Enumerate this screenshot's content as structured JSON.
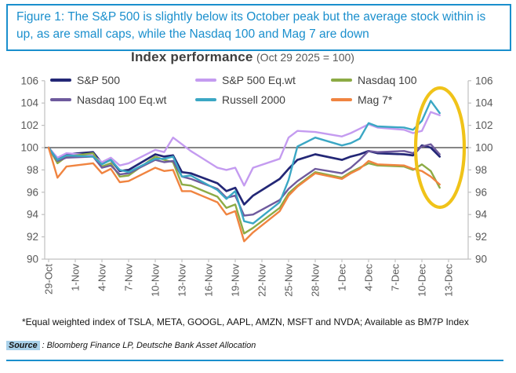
{
  "figure": {
    "title": "Figure 1: The S&P 500 is slightly below its October peak but the average stock within is up, as are small caps, while the Nasdaq 100 and Mag 7 are down",
    "footnote": "*Equal weighted index of TSLA, META, GOOGL, AAPL, AMZN, MSFT and NVDA; Available as BM7P Index",
    "source_label": "Source",
    "source_text": ": Bloomberg Finance LP, Deutsche Bank Asset Allocation",
    "accent_blue": "#1a8fcd"
  },
  "chart_data": {
    "type": "line",
    "title": "Index performance",
    "subtitle": "(Oct 29 2025 = 100)",
    "legend_position": "top",
    "grid": false,
    "baseline": 100,
    "ylim": [
      90,
      106
    ],
    "y_ticks": [
      90,
      92,
      94,
      96,
      98,
      100,
      102,
      104,
      106
    ],
    "right_axis_mirror": true,
    "x_ticks": [
      "29-Oct",
      "1-Nov",
      "4-Nov",
      "7-Nov",
      "10-Nov",
      "13-Nov",
      "16-Nov",
      "19-Nov",
      "22-Nov",
      "25-Nov",
      "28-Nov",
      "1-Dec",
      "4-Dec",
      "7-Dec",
      "10-Dec",
      "13-Dec"
    ],
    "x": [
      "29-Oct",
      "30-Oct",
      "31-Oct",
      "3-Nov",
      "4-Nov",
      "5-Nov",
      "6-Nov",
      "7-Nov",
      "10-Nov",
      "11-Nov",
      "12-Nov",
      "13-Nov",
      "14-Nov",
      "17-Nov",
      "18-Nov",
      "19-Nov",
      "20-Nov",
      "21-Nov",
      "24-Nov",
      "25-Nov",
      "26-Nov",
      "28-Nov",
      "1-Dec",
      "2-Dec",
      "3-Dec",
      "4-Dec",
      "5-Dec",
      "8-Dec",
      "9-Dec",
      "10-Dec",
      "11-Dec",
      "12-Dec"
    ],
    "series": [
      {
        "name": "S&P 500",
        "color": "#232776",
        "values": [
          100,
          99.0,
          99.4,
          99.6,
          98.6,
          98.9,
          97.9,
          98.0,
          99.4,
          99.2,
          99.3,
          97.8,
          97.7,
          96.8,
          96.1,
          96.4,
          94.9,
          95.7,
          97.2,
          98.1,
          98.9,
          99.4,
          98.9,
          99.2,
          99.4,
          99.7,
          99.5,
          99.4,
          99.3,
          100.2,
          100.0,
          99.2
        ]
      },
      {
        "name": "S&P 500 Eq.wt",
        "color": "#c49bf0",
        "values": [
          100,
          99.1,
          99.5,
          99.3,
          98.7,
          99.1,
          98.4,
          98.6,
          99.8,
          99.6,
          100.9,
          100.3,
          99.7,
          98.2,
          98.0,
          98.2,
          96.6,
          98.2,
          99.0,
          100.9,
          101.5,
          101.4,
          101.0,
          101.3,
          101.7,
          102.1,
          101.8,
          101.6,
          101.3,
          101.5,
          103.2,
          102.9
        ]
      },
      {
        "name": "Nasdaq 100",
        "color": "#8cab45",
        "values": [
          100,
          98.6,
          99.2,
          99.5,
          98.3,
          98.6,
          97.4,
          97.5,
          99.2,
          98.9,
          98.7,
          96.7,
          96.6,
          95.6,
          94.6,
          94.9,
          92.3,
          92.8,
          94.6,
          95.9,
          96.6,
          97.8,
          97.3,
          97.8,
          98.2,
          98.6,
          98.4,
          98.3,
          98.0,
          98.5,
          97.9,
          96.4
        ]
      },
      {
        "name": "Nasdaq 100 Eq.wt",
        "color": "#6e5a9d",
        "values": [
          100,
          98.8,
          99.1,
          99.2,
          98.2,
          98.4,
          97.6,
          97.7,
          98.9,
          98.7,
          98.8,
          97.4,
          97.2,
          96.3,
          95.5,
          95.7,
          93.9,
          94.0,
          95.3,
          96.3,
          97.0,
          98.1,
          97.7,
          98.2,
          98.9,
          99.7,
          99.6,
          99.7,
          99.5,
          100.1,
          100.3,
          99.4
        ]
      },
      {
        "name": "Russell 2000",
        "color": "#3ba7c4",
        "values": [
          100,
          98.9,
          99.3,
          99.2,
          98.5,
          98.9,
          98.0,
          97.8,
          99.0,
          99.0,
          99.2,
          97.4,
          97.5,
          96.2,
          95.4,
          96.1,
          93.4,
          93.2,
          95.1,
          97.1,
          100.1,
          100.9,
          100.2,
          100.4,
          100.8,
          102.2,
          101.9,
          101.8,
          101.6,
          102.4,
          104.2,
          103.1
        ]
      },
      {
        "name": "Mag 7*",
        "color": "#f08440",
        "values": [
          100,
          97.3,
          98.3,
          98.6,
          97.7,
          98.1,
          96.9,
          97.0,
          98.2,
          97.9,
          98.0,
          96.1,
          96.1,
          95.1,
          94.0,
          94.3,
          91.6,
          92.4,
          94.3,
          95.7,
          96.5,
          97.7,
          97.2,
          97.7,
          98.1,
          98.8,
          98.5,
          98.4,
          98.1,
          97.9,
          97.4,
          96.7
        ]
      }
    ],
    "annotation": {
      "type": "ellipse",
      "color": "#f0c319",
      "note": "highlights right-end divergence"
    }
  }
}
